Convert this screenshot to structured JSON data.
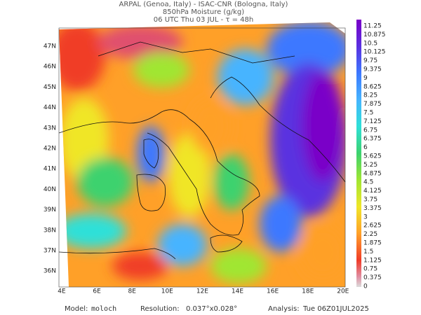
{
  "header": {
    "line1": "ARPAL (Genoa, Italy)  -  ISAC-CNR (Bologna, Italy)",
    "line2": "850hPa Moisture (g/kg)",
    "line3": "06 UTC Thu 03 JUL  -  τ = 48h"
  },
  "map": {
    "lat_labels": [
      "47N",
      "46N",
      "45N",
      "44N",
      "43N",
      "42N",
      "41N",
      "40N",
      "39N",
      "38N",
      "37N",
      "36N"
    ],
    "lon_labels": [
      "4E",
      "6E",
      "8E",
      "10E",
      "12E",
      "14E",
      "16E",
      "18E",
      "20E"
    ]
  },
  "colorbar": {
    "labels": [
      11.25,
      10.875,
      10.5,
      10.125,
      9.75,
      9.375,
      9,
      8.625,
      8.25,
      7.875,
      7.5,
      7.125,
      6.75,
      6.375,
      6,
      5.625,
      5.25,
      4.875,
      4.5,
      4.125,
      3.75,
      3.375,
      3,
      2.625,
      2.25,
      1.875,
      1.5,
      1.125,
      0.75,
      0.375,
      0
    ]
  },
  "footer": {
    "model_label": "Model:",
    "model": "moloch",
    "resolution_label": "Resolution:",
    "resolution": "0.037°x0.028°",
    "analysis_label": "Analysis:",
    "analysis": "Tue 06Z01JUL2025"
  }
}
